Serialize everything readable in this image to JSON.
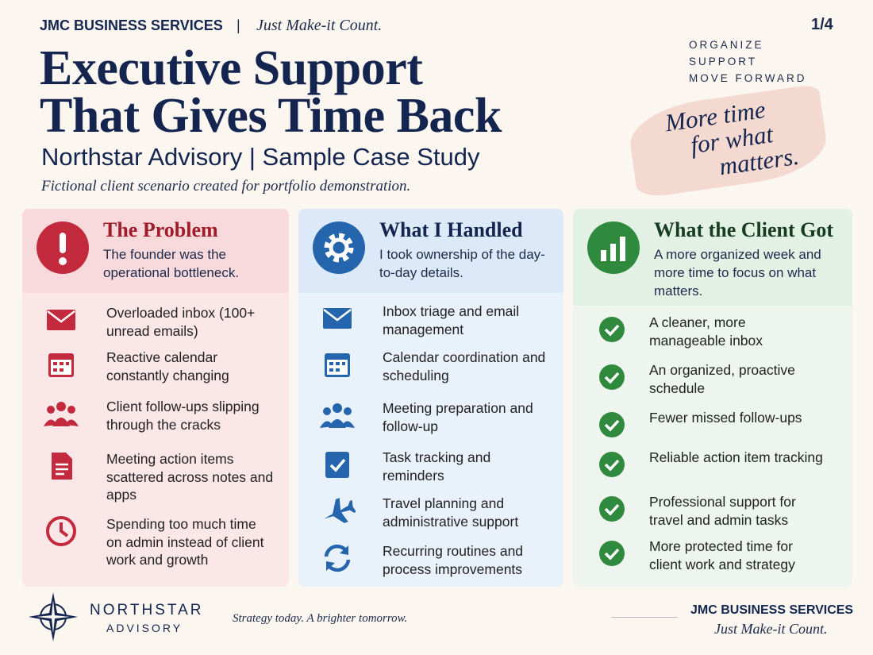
{
  "header": {
    "brand": "JMC BUSINESS SERVICES",
    "separator": "|",
    "tagline": "Just Make-it Count.",
    "page": "1/4",
    "motto": [
      "ORGANIZE",
      "SUPPORT",
      "MOVE FORWARD"
    ],
    "title": [
      "Executive Support",
      "That Gives Time Back"
    ],
    "subtitle": "Northstar Advisory | Sample Case Study",
    "note": "Fictional client scenario created for portfolio demonstration.",
    "script_note": [
      "More time",
      "for what",
      "matters."
    ]
  },
  "columns": [
    {
      "title": "The Problem",
      "summary": "The founder was the operational bottleneck.",
      "items": [
        "Overloaded inbox (100+ unread emails)",
        "Reactive calendar constantly changing",
        "Client follow-ups slipping through the cracks",
        "Meeting action items scattered across notes and apps",
        "Spending too much time on admin instead of client work and growth"
      ]
    },
    {
      "title": "What I Handled",
      "summary": "I took ownership of the day-to-day details.",
      "items": [
        "Inbox triage and email management",
        "Calendar coordination and scheduling",
        "Meeting preparation and follow-up",
        "Task tracking and reminders",
        "Travel planning and administrative support",
        "Recurring routines and process improvements"
      ]
    },
    {
      "title": "What the Client Got",
      "summary": "A more organized week and more time to focus on what matters.",
      "items": [
        "A cleaner, more manageable inbox",
        "An organized, proactive schedule",
        "Fewer missed follow-ups",
        "Reliable action item tracking",
        "Professional support for travel and admin tasks",
        "More protected time for client work and strategy"
      ]
    }
  ],
  "footer": {
    "logo": "NORTHSTAR",
    "logo_sub": "ADVISORY",
    "slogan": "Strategy today. A brighter tomorrow.",
    "brand": "JMC BUSINESS SERVICES",
    "tagline": "Just Make-it Count."
  }
}
